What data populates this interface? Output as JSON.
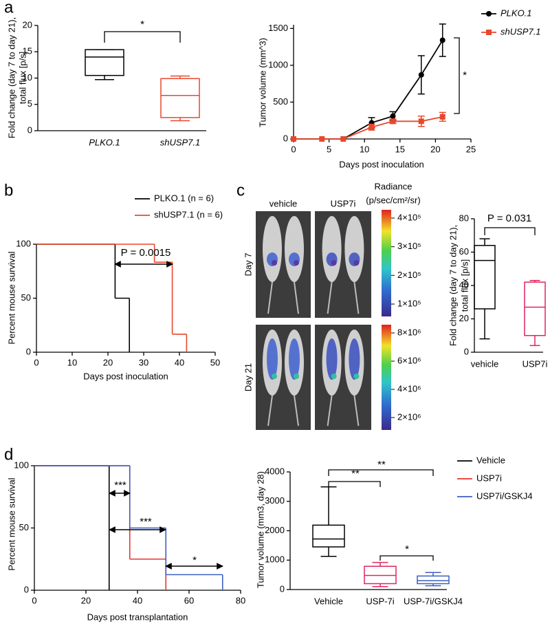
{
  "panel_labels": [
    "a",
    "b",
    "c",
    "d"
  ],
  "chart_data": [
    {
      "type": "box",
      "categories": [
        "PLKO.1",
        "shUSP7.1"
      ],
      "colors": [
        "#000000",
        "#e8472c"
      ],
      "stats": [
        {
          "min": 9.7,
          "q1": 10.5,
          "median": 14,
          "q3": 15.4,
          "max": 15.4
        },
        {
          "min": 1.9,
          "q1": 2.5,
          "median": 6.7,
          "q3": 9.9,
          "max": 10.4
        }
      ],
      "ylim": [
        0,
        20
      ],
      "yticks": [
        0,
        5,
        10,
        15,
        20
      ],
      "y_label": [
        "Fold change (day 7 to day 21),",
        "total flux [p/s]"
      ],
      "annotations": [
        "*"
      ]
    },
    {
      "type": "line",
      "x": [
        0,
        4,
        7,
        11,
        14,
        18,
        21
      ],
      "series": [
        {
          "name": "PLKO.1",
          "color": "#000000",
          "marker": "circle",
          "values": [
            0,
            0,
            0,
            220,
            310,
            870,
            1340
          ],
          "errors": [
            0,
            0,
            0,
            70,
            60,
            260,
            220
          ]
        },
        {
          "name": "shUSP7.1",
          "color": "#e8472c",
          "marker": "square",
          "values": [
            0,
            0,
            0,
            160,
            240,
            240,
            300
          ],
          "errors": [
            0,
            0,
            0,
            40,
            30,
            70,
            60
          ]
        }
      ],
      "xlim": [
        0,
        25
      ],
      "xticks": [
        0,
        5,
        10,
        15,
        20,
        25
      ],
      "ylim": [
        0,
        1550
      ],
      "yticks": [
        0,
        500,
        1000,
        1500
      ],
      "x_label": "Days post inoculation",
      "y_label": [
        "Tumor volume (mm^3)"
      ],
      "annotations": [
        "*"
      ]
    },
    {
      "type": "step",
      "series": [
        {
          "name": "PLKO.1 (n = 6)",
          "color": "#000000",
          "x": [
            0,
            22,
            26
          ],
          "values": [
            100,
            50,
            0
          ]
        },
        {
          "name": "shUSP7.1 (n = 6)",
          "color": "#e8472c",
          "x": [
            0,
            33,
            38,
            42
          ],
          "values": [
            100,
            83.3,
            16.7,
            0
          ]
        }
      ],
      "xlim": [
        0,
        50
      ],
      "xticks": [
        0,
        10,
        20,
        30,
        40,
        50
      ],
      "ylim": [
        0,
        100
      ],
      "yticks": [
        0,
        50,
        100
      ],
      "x_label": "Days post inoculation",
      "y_label": [
        "Percent mouse survival"
      ],
      "annotations": [
        "P = 0.0015"
      ]
    },
    {
      "type": "image",
      "columns": [
        "vehicle",
        "USP7i"
      ],
      "rows": [
        "Day 7",
        "Day 21"
      ],
      "colorbar_title": [
        "Radiance",
        "(p/sec/cm²/sr)"
      ],
      "colorbars": [
        {
          "ticks": [
            "4×10⁵",
            "3×10⁵",
            "2×10⁵",
            "1×10⁵"
          ]
        },
        {
          "ticks": [
            "8×10⁶",
            "6×10⁶",
            "4×10⁶",
            "2×10⁶"
          ]
        }
      ]
    },
    {
      "type": "box",
      "categories": [
        "vehicle",
        "USP7i"
      ],
      "colors": [
        "#000000",
        "#e0245e"
      ],
      "stats": [
        {
          "min": 8,
          "q1": 26,
          "median": 55,
          "q3": 64,
          "max": 68
        },
        {
          "min": 4,
          "q1": 10,
          "median": 27,
          "q3": 42,
          "max": 43
        }
      ],
      "ylim": [
        0,
        80
      ],
      "yticks": [
        0,
        20,
        40,
        60,
        80
      ],
      "y_label": [
        "Fold change (day 7 to day 21),",
        "total flux [p/s]"
      ],
      "annotations": [
        "P = 0.031"
      ]
    },
    {
      "type": "step",
      "series": [
        {
          "name": "Vehicle",
          "color": "#000000",
          "x": [
            0,
            29
          ],
          "values": [
            100,
            0
          ]
        },
        {
          "name": "USP7i",
          "color": "#e8332c",
          "x": [
            0,
            37,
            51
          ],
          "values": [
            100,
            25,
            0
          ]
        },
        {
          "name": "USP7i/GSKJ4",
          "color": "#3b5fc0",
          "x": [
            0,
            37,
            51,
            73
          ],
          "values": [
            100,
            50,
            12.5,
            0
          ]
        }
      ],
      "xlim": [
        0,
        80
      ],
      "xticks": [
        0,
        20,
        40,
        60,
        80
      ],
      "ylim": [
        0,
        100
      ],
      "yticks": [
        0,
        50,
        100
      ],
      "x_label": "Days post transplantation",
      "y_label": [
        "Percent mouse survival"
      ],
      "annotations": [
        "***",
        "***",
        "*"
      ]
    },
    {
      "type": "box",
      "categories": [
        "Vehicle",
        "USP-7i",
        "USP-7i/GSKJ4"
      ],
      "colors": [
        "#000000",
        "#e0245e",
        "#3b5fc0"
      ],
      "stats": [
        {
          "min": 1130,
          "q1": 1450,
          "median": 1720,
          "q3": 2190,
          "max": 3490
        },
        {
          "min": 100,
          "q1": 200,
          "median": 480,
          "q3": 790,
          "max": 920
        },
        {
          "min": 130,
          "q1": 200,
          "median": 300,
          "q3": 460,
          "max": 580
        }
      ],
      "ylim": [
        0,
        4000
      ],
      "yticks": [
        0,
        1000,
        2000,
        3000,
        4000
      ],
      "y_label": [
        "Tumor volume (mm3, day 28)"
      ],
      "annotations": [
        "**",
        "**",
        "*"
      ]
    }
  ]
}
